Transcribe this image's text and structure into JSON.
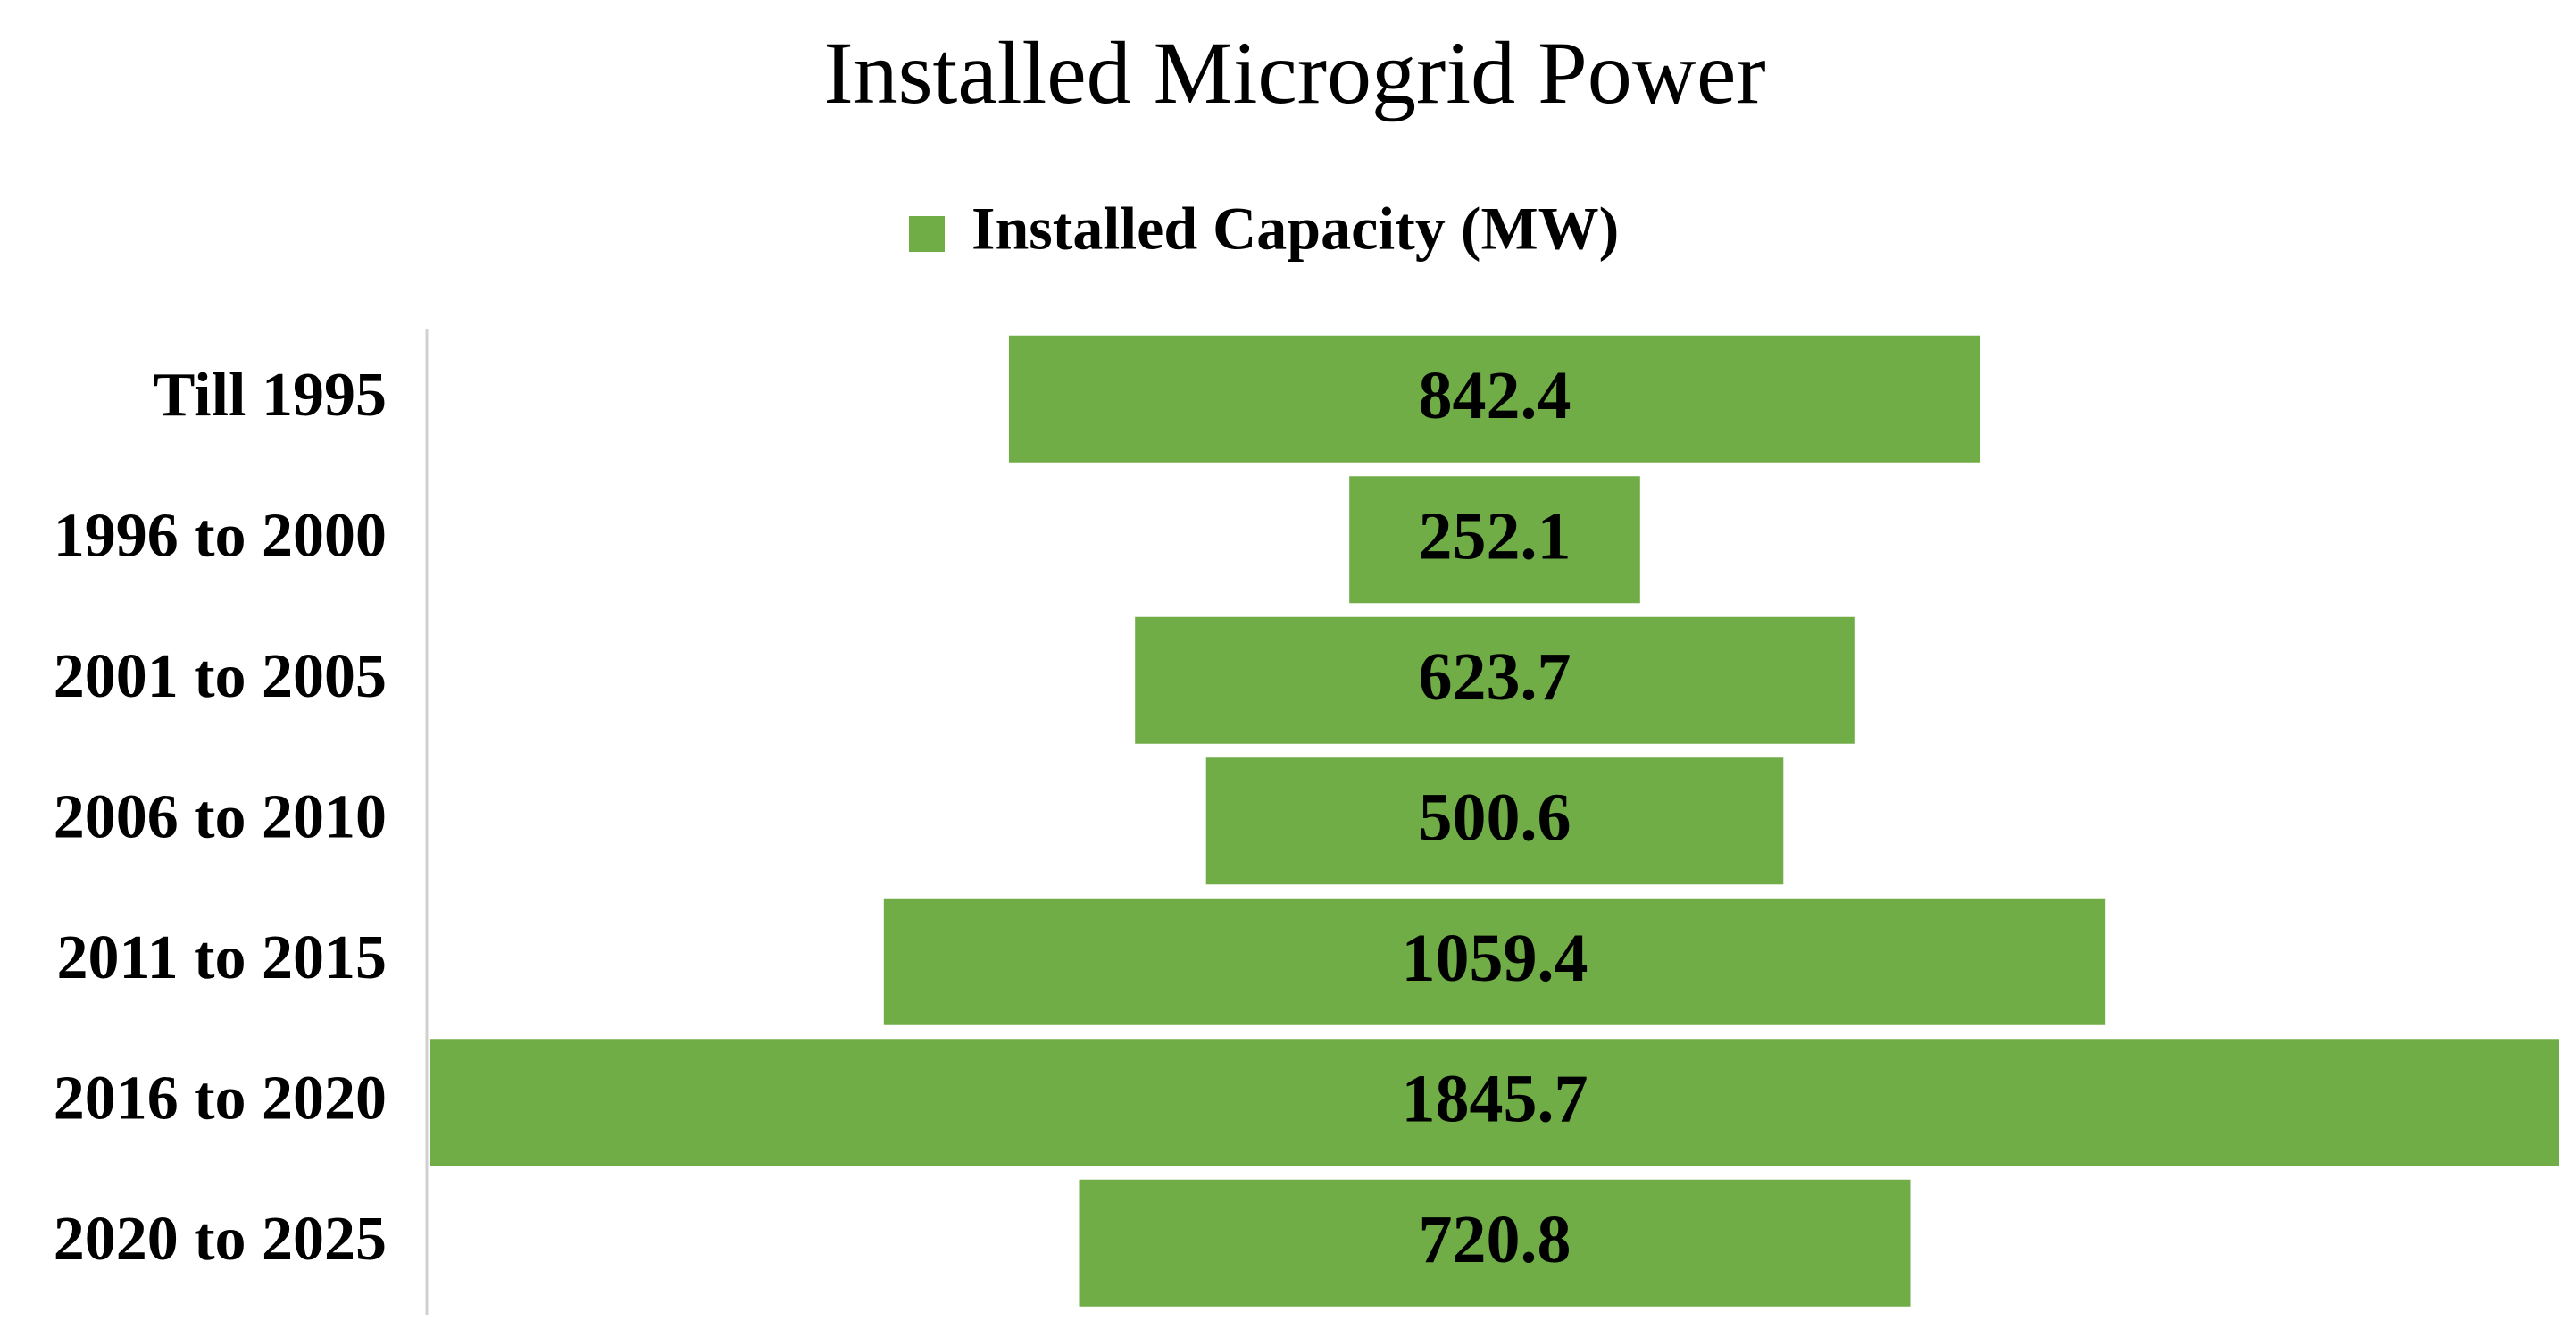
{
  "chart_data": {
    "type": "funnel",
    "title": "Installed Microgrid Power",
    "categories": [
      "Till 1995",
      "1996 to 2000",
      "2001 to 2005",
      "2006 to 2010",
      "2011 to 2015",
      "2016 to 2020",
      "2020 to 2025"
    ],
    "series": [
      {
        "name": "Installed Capacity (MW)",
        "color": "#70ad47",
        "values": [
          842.4,
          252.1,
          623.7,
          500.6,
          1059.4,
          1845.7,
          720.8
        ]
      }
    ],
    "legend": "top"
  }
}
